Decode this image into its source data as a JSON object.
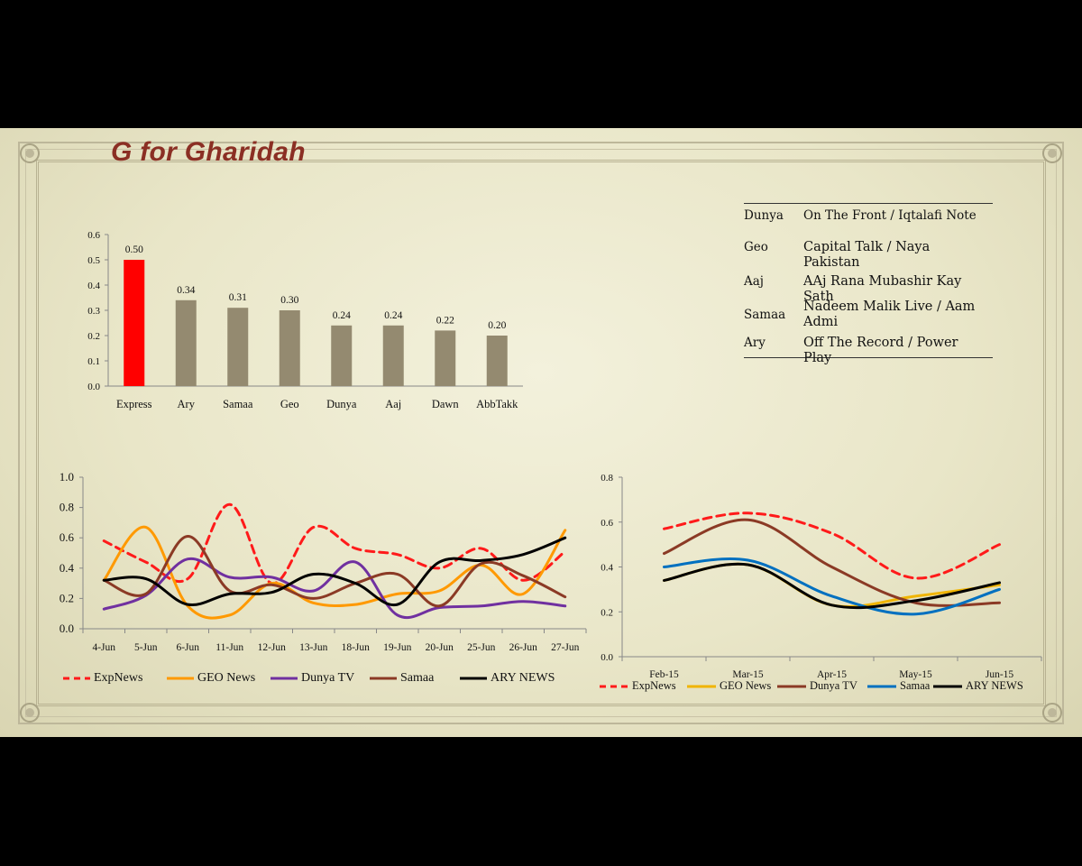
{
  "slide": {
    "title": "G for Gharidah"
  },
  "colors": {
    "title": "#8b2f24",
    "highlight_bar": "#ff0000",
    "bar": "#948a70"
  },
  "program_table": [
    {
      "channel": "Dunya",
      "show": "On The Front / Iqtalafi Note"
    },
    {
      "channel": "Geo",
      "show": "Capital Talk / Naya Pakistan"
    },
    {
      "channel": "Aaj",
      "show": "AAj Rana Mubashir Kay Sath"
    },
    {
      "channel": "Samaa",
      "show": "Nadeem Malik Live  / Aam Admi"
    },
    {
      "channel": "Ary",
      "show": "Off The Record  / Power Play"
    }
  ],
  "chart_data": [
    {
      "type": "bar",
      "categories": [
        "Express",
        "Ary",
        "Samaa",
        "Geo",
        "Dunya",
        "Aaj",
        "Dawn",
        "AbbTakk"
      ],
      "values": [
        0.5,
        0.34,
        0.31,
        0.3,
        0.24,
        0.24,
        0.22,
        0.2
      ],
      "value_labels": [
        "0.50",
        "0.34",
        "0.31",
        "0.30",
        "0.24",
        "0.24",
        "0.22",
        "0.20"
      ],
      "yticks": [
        "0.0",
        "0.1",
        "0.2",
        "0.3",
        "0.4",
        "0.5",
        "0.6"
      ],
      "ylim": [
        0,
        0.6
      ],
      "highlight": "Express",
      "colors": [
        "#ff0000",
        "#948a70",
        "#948a70",
        "#948a70",
        "#948a70",
        "#948a70",
        "#948a70",
        "#948a70"
      ]
    },
    {
      "type": "line",
      "categories": [
        "4-Jun",
        "5-Jun",
        "6-Jun",
        "11-Jun",
        "12-Jun",
        "13-Jun",
        "18-Jun",
        "19-Jun",
        "20-Jun",
        "25-Jun",
        "26-Jun",
        "27-Jun"
      ],
      "yticks": [
        "0.0",
        "0.2",
        "0.4",
        "0.6",
        "0.8",
        "1.0"
      ],
      "ylim": [
        0,
        1.0
      ],
      "smooth": true,
      "legend_position": "bottom",
      "series": [
        {
          "name": "ExpNews",
          "color": "#ff1a1a",
          "dash": true,
          "values": [
            0.58,
            0.44,
            0.33,
            0.82,
            0.3,
            0.67,
            0.53,
            0.49,
            0.4,
            0.53,
            0.32,
            0.51
          ]
        },
        {
          "name": "GEO News",
          "color": "#ff9900",
          "dash": false,
          "values": [
            0.32,
            0.67,
            0.15,
            0.09,
            0.3,
            0.17,
            0.16,
            0.23,
            0.25,
            0.42,
            0.23,
            0.65
          ]
        },
        {
          "name": "Dunya TV",
          "color": "#7030a0",
          "dash": false,
          "values": [
            0.13,
            0.22,
            0.46,
            0.34,
            0.34,
            0.25,
            0.44,
            0.09,
            0.14,
            0.15,
            0.18,
            0.15
          ]
        },
        {
          "name": "Samaa",
          "color": "#8b3a25",
          "dash": false,
          "values": [
            0.32,
            0.23,
            0.61,
            0.25,
            0.29,
            0.2,
            0.3,
            0.36,
            0.15,
            0.43,
            0.35,
            0.21
          ]
        },
        {
          "name": "ARY NEWS",
          "color": "#000000",
          "dash": false,
          "values": [
            0.32,
            0.33,
            0.16,
            0.23,
            0.24,
            0.36,
            0.3,
            0.16,
            0.44,
            0.45,
            0.49,
            0.6
          ]
        }
      ]
    },
    {
      "type": "line",
      "categories": [
        "Feb-15",
        "Mar-15",
        "Apr-15",
        "May-15",
        "Jun-15"
      ],
      "yticks": [
        "0.0",
        "0.2",
        "0.4",
        "0.6",
        "0.8"
      ],
      "ylim": [
        0,
        0.8
      ],
      "smooth": true,
      "legend_position": "bottom",
      "series": [
        {
          "name": "ExpNews",
          "color": "#ff1a1a",
          "dash": true,
          "values": [
            0.57,
            0.64,
            0.55,
            0.35,
            0.5
          ]
        },
        {
          "name": "GEO News",
          "color": "#f0b400",
          "dash": false,
          "values": [
            0.34,
            0.41,
            0.23,
            0.27,
            0.32
          ]
        },
        {
          "name": "Dunya TV",
          "color": "#8b3a25",
          "dash": false,
          "values": [
            0.46,
            0.61,
            0.4,
            0.24,
            0.24
          ]
        },
        {
          "name": "Samaa",
          "color": "#0070c0",
          "dash": false,
          "values": [
            0.4,
            0.43,
            0.27,
            0.19,
            0.3
          ]
        },
        {
          "name": "ARY NEWS",
          "color": "#000000",
          "dash": false,
          "values": [
            0.34,
            0.41,
            0.23,
            0.25,
            0.33
          ]
        }
      ]
    }
  ]
}
